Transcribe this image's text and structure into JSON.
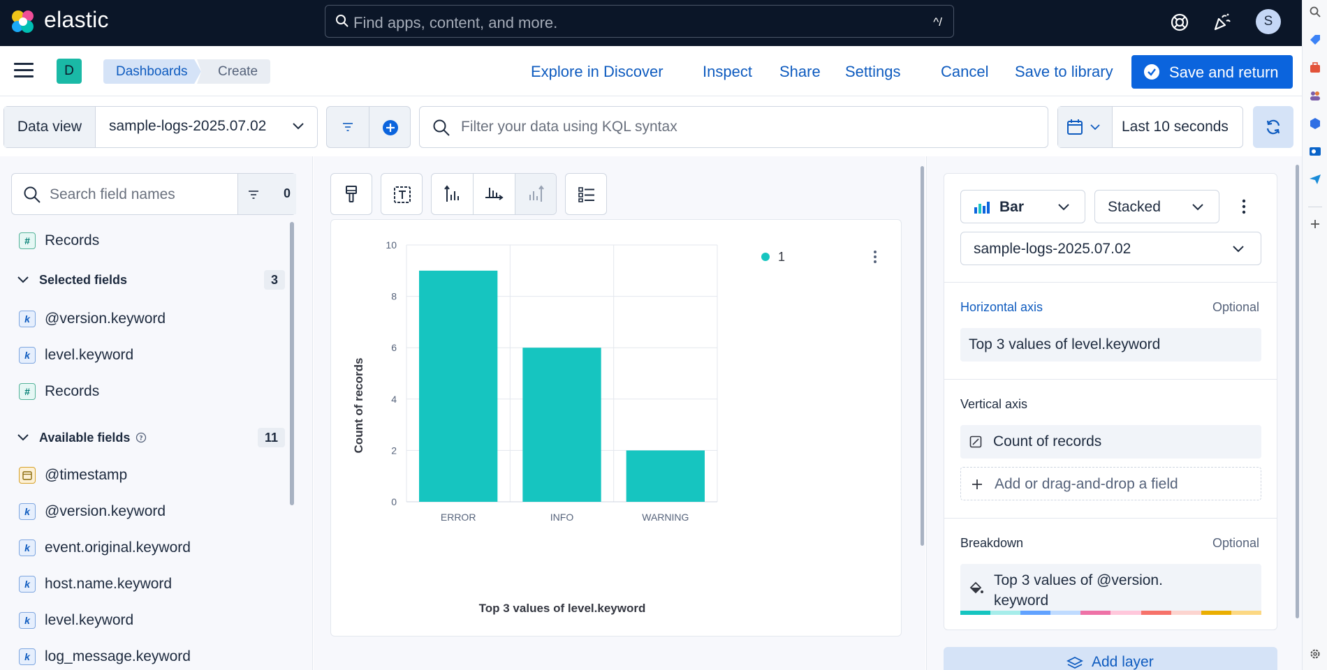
{
  "app": {
    "brand": "elastic",
    "global_search_placeholder": "Find apps, content, and more.",
    "global_search_shortcut": "^/",
    "user_initial": "S"
  },
  "header": {
    "space_badge": "D",
    "breadcrumbs": [
      "Dashboards",
      "Create"
    ],
    "links": {
      "explore": "Explore in Discover",
      "inspect": "Inspect",
      "share": "Share",
      "settings": "Settings",
      "cancel": "Cancel",
      "save_library": "Save to library"
    },
    "primary_button": "Save and return"
  },
  "query": {
    "data_view_label": "Data view",
    "data_view_value": "sample-logs-2025.07.02",
    "kql_placeholder": "Filter your data using KQL syntax",
    "time_range": "Last 10 seconds"
  },
  "fields": {
    "search_placeholder": "Search field names",
    "filter_count": "0",
    "records_label": "Records",
    "selected": {
      "title": "Selected fields",
      "count": "3",
      "items": [
        {
          "type": "keyword",
          "name": "@version.keyword"
        },
        {
          "type": "keyword",
          "name": "level.keyword"
        },
        {
          "type": "number",
          "name": "Records"
        }
      ]
    },
    "available": {
      "title": "Available fields",
      "count": "11",
      "items": [
        {
          "type": "date",
          "name": "@timestamp"
        },
        {
          "type": "keyword",
          "name": "@version.keyword"
        },
        {
          "type": "keyword",
          "name": "event.original.keyword"
        },
        {
          "type": "keyword",
          "name": "host.name.keyword"
        },
        {
          "type": "keyword",
          "name": "level.keyword"
        },
        {
          "type": "keyword",
          "name": "log_message.keyword"
        }
      ]
    }
  },
  "chart_data": {
    "type": "bar",
    "categories": [
      "ERROR",
      "INFO",
      "WARNING"
    ],
    "series": [
      {
        "name": "1",
        "values": [
          9,
          6,
          2
        ],
        "color": "#16c5c0"
      }
    ],
    "title": "",
    "xlabel": "Top 3 values of level.keyword",
    "ylabel": "Count of records",
    "ylim": [
      0,
      10
    ],
    "yticks": [
      0,
      2,
      4,
      6,
      8,
      10
    ],
    "grid": true,
    "legend_position": "top-right"
  },
  "config": {
    "chart_type": "Bar",
    "mode": "Stacked",
    "layer_data_view": "sample-logs-2025.07.02",
    "horizontal_axis": {
      "label": "Horizontal axis",
      "optional": "Optional",
      "value": "Top 3 values of level.keyword"
    },
    "vertical_axis": {
      "label": "Vertical axis",
      "value": "Count of records",
      "add": "Add or drag-and-drop a field"
    },
    "breakdown": {
      "label": "Breakdown",
      "optional": "Optional",
      "value_line1": "Top 3 values of @version.",
      "value_line2": "keyword"
    },
    "palette": [
      "#16c5c0",
      "#a6edea",
      "#61a2ff",
      "#bfdbff",
      "#ee72a6",
      "#ffc7db",
      "#f6726a",
      "#fcd4cf",
      "#eaae01",
      "#fcd883"
    ],
    "add_layer": "Add layer"
  },
  "colors": {
    "accent": "#0b64dd",
    "header_bg": "#0b1628",
    "bar": "#16c5c0"
  }
}
